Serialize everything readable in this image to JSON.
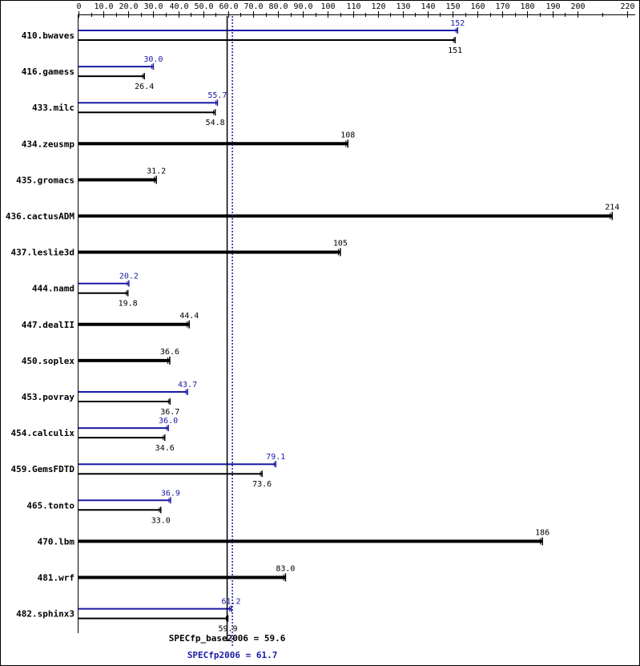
{
  "chart_data": {
    "type": "bar",
    "orientation": "horizontal",
    "title": "",
    "xlim": [
      0,
      220
    ],
    "ticks": [
      {
        "value": 0,
        "label": "0"
      },
      {
        "value": 10,
        "label": "10.0"
      },
      {
        "value": 20,
        "label": "20.0"
      },
      {
        "value": 30,
        "label": "30.0"
      },
      {
        "value": 40,
        "label": "40.0"
      },
      {
        "value": 50,
        "label": "50.0"
      },
      {
        "value": 60,
        "label": "60.0"
      },
      {
        "value": 70,
        "label": "70.0"
      },
      {
        "value": 80,
        "label": "80.0"
      },
      {
        "value": 90,
        "label": "90.0"
      },
      {
        "value": 100,
        "label": "100"
      },
      {
        "value": 110,
        "label": "110"
      },
      {
        "value": 120,
        "label": "120"
      },
      {
        "value": 130,
        "label": "130"
      },
      {
        "value": 140,
        "label": "140"
      },
      {
        "value": 150,
        "label": "150"
      },
      {
        "value": 160,
        "label": "160"
      },
      {
        "value": 170,
        "label": "170"
      },
      {
        "value": 180,
        "label": "180"
      },
      {
        "value": 190,
        "label": "190"
      },
      {
        "value": 200,
        "label": "200"
      },
      {
        "value": 220,
        "label": "220"
      }
    ],
    "colors": {
      "peak": "#1a1aa6",
      "base": "#000000"
    },
    "benchmarks": [
      {
        "name": "410.bwaves",
        "peak": 152,
        "peak_label": "152",
        "base": 151,
        "base_label": "151"
      },
      {
        "name": "416.gamess",
        "peak": 30.0,
        "peak_label": "30.0",
        "base": 26.4,
        "base_label": "26.4"
      },
      {
        "name": "433.milc",
        "peak": 55.7,
        "peak_label": "55.7",
        "base": 54.8,
        "base_label": "54.8"
      },
      {
        "name": "434.zeusmp",
        "peak": null,
        "peak_label": null,
        "base": 108,
        "base_label": "108"
      },
      {
        "name": "435.gromacs",
        "peak": null,
        "peak_label": null,
        "base": 31.2,
        "base_label": "31.2"
      },
      {
        "name": "436.cactusADM",
        "peak": null,
        "peak_label": null,
        "base": 214,
        "base_label": "214"
      },
      {
        "name": "437.leslie3d",
        "peak": null,
        "peak_label": null,
        "base": 105,
        "base_label": "105"
      },
      {
        "name": "444.namd",
        "peak": 20.2,
        "peak_label": "20.2",
        "base": 19.8,
        "base_label": "19.8"
      },
      {
        "name": "447.dealII",
        "peak": null,
        "peak_label": null,
        "base": 44.4,
        "base_label": "44.4"
      },
      {
        "name": "450.soplex",
        "peak": null,
        "peak_label": null,
        "base": 36.6,
        "base_label": "36.6"
      },
      {
        "name": "453.povray",
        "peak": 43.7,
        "peak_label": "43.7",
        "base": 36.7,
        "base_label": "36.7"
      },
      {
        "name": "454.calculix",
        "peak": 36.0,
        "peak_label": "36.0",
        "base": 34.6,
        "base_label": "34.6"
      },
      {
        "name": "459.GemsFDTD",
        "peak": 79.1,
        "peak_label": "79.1",
        "base": 73.6,
        "base_label": "73.6"
      },
      {
        "name": "465.tonto",
        "peak": 36.9,
        "peak_label": "36.9",
        "base": 33.0,
        "base_label": "33.0"
      },
      {
        "name": "470.lbm",
        "peak": null,
        "peak_label": null,
        "base": 186,
        "base_label": "186"
      },
      {
        "name": "481.wrf",
        "peak": null,
        "peak_label": null,
        "base": 83.0,
        "base_label": "83.0"
      },
      {
        "name": "482.sphinx3",
        "peak": 61.2,
        "peak_label": "61.2",
        "base": 59.9,
        "base_label": "59.9"
      }
    ],
    "summary": {
      "base_value": 59.6,
      "base_text": "SPECfp_base2006 = 59.6",
      "peak_value": 61.7,
      "peak_text": "SPECfp2006 = 61.7"
    }
  }
}
